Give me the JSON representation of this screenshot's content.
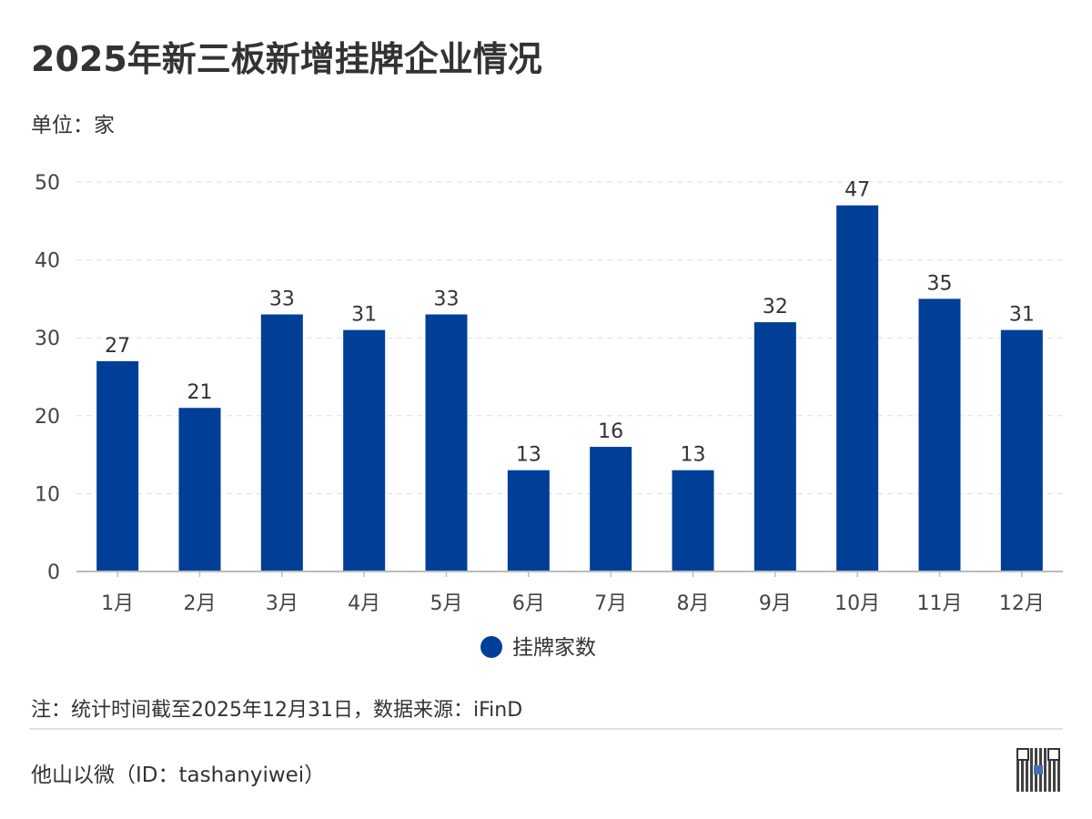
{
  "header": {
    "title": "2025年新三板新增挂牌企业情况",
    "unit": "单位：家"
  },
  "chart_data": {
    "type": "bar",
    "categories": [
      "1月",
      "2月",
      "3月",
      "4月",
      "5月",
      "6月",
      "7月",
      "8月",
      "9月",
      "10月",
      "11月",
      "12月"
    ],
    "series": [
      {
        "name": "挂牌家数",
        "values": [
          27,
          21,
          33,
          31,
          33,
          13,
          16,
          13,
          32,
          47,
          35,
          31
        ],
        "color": "#003f97"
      }
    ],
    "ylim": [
      0,
      50
    ],
    "yticks": [
      0,
      10,
      20,
      30,
      40,
      50
    ],
    "grid": true,
    "legend": "bottom",
    "data_labels": true
  },
  "footer": {
    "note": "注：统计时间截至2025年12月31日，数据来源：iFinD",
    "brand": "他山以微（ID：tashanyiwei）"
  }
}
